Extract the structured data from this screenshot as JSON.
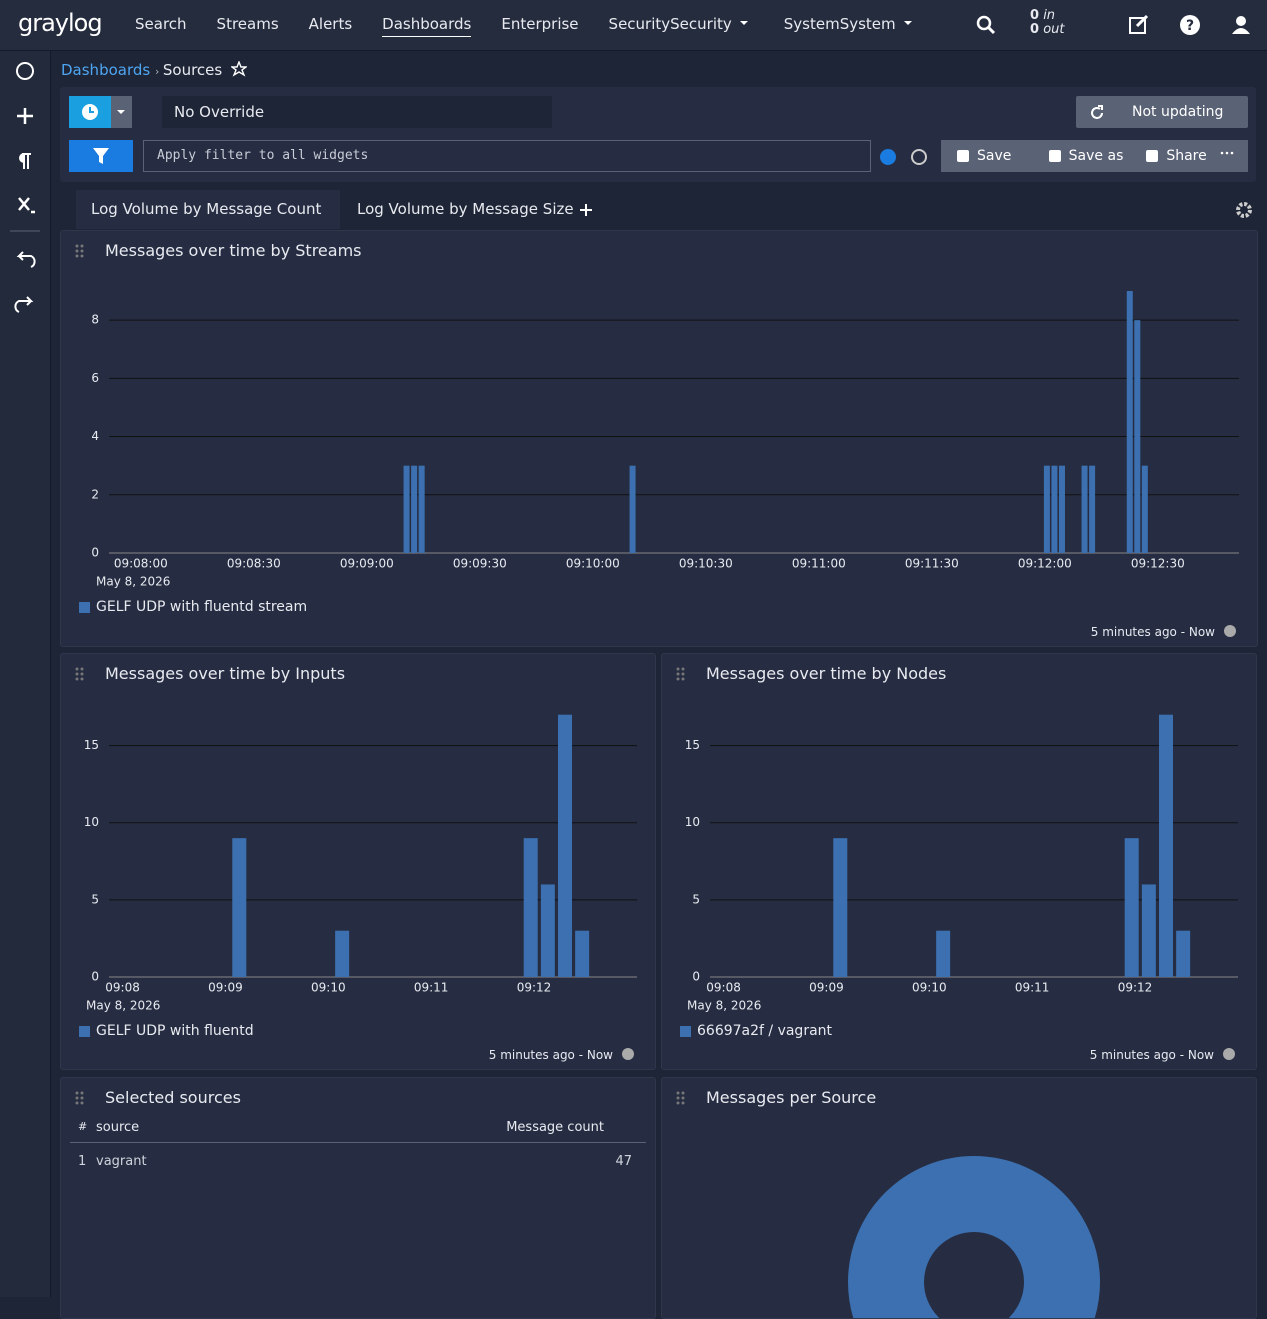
{
  "nav": {
    "logo": "graylog",
    "items": [
      "Search",
      "Streams",
      "Alerts",
      "Dashboards",
      "Enterprise",
      "Security",
      "System"
    ],
    "throughput": {
      "in_count": "0",
      "in_label": "in",
      "out_count": "0",
      "out_label": "out"
    }
  },
  "breadcrumb": [
    "Dashboards",
    "Sources"
  ],
  "search_bar": {
    "time_range": "No Override",
    "refresh": "Not updating",
    "filter_placeholder": "Apply filter to all widgets",
    "actions": [
      "Save",
      "Save as",
      "Share"
    ]
  },
  "tabs": [
    "Log Volume by Message Count",
    "Log Volume by Message Size"
  ],
  "widgets": [
    {
      "title": "Messages over time by Streams",
      "timerange": "5 minutes ago - Now",
      "chart_data": {
        "type": "bar",
        "x": [
          "09:09:14",
          "09:09:16",
          "09:09:18",
          "09:10:14",
          "09:12:04",
          "09:12:06",
          "09:12:08",
          "09:12:14",
          "09:12:16",
          "09:12:26",
          "09:12:28",
          "09:12:30"
        ],
        "series": [
          {
            "name": "GELF UDP with fluentd stream",
            "color": "#3c70b0",
            "values": [
              3,
              3,
              3,
              3,
              3,
              3,
              3,
              3,
              3,
              9,
              8,
              3
            ]
          }
        ],
        "xlim": [
          "09:07:55",
          "09:12:55"
        ],
        "xticks": [
          "09:08:00",
          "09:08:30",
          "09:09:00",
          "09:09:30",
          "09:10:00",
          "09:10:30",
          "09:11:00",
          "09:11:30",
          "09:12:00",
          "09:12:30"
        ],
        "x_date_label": "May 8, 2026",
        "ylim": [
          0,
          9
        ],
        "yticks": [
          0,
          2,
          4,
          6,
          8
        ],
        "grid": true
      }
    },
    {
      "title": "Messages over time by Inputs",
      "timerange": "5 minutes ago - Now",
      "chart_data": {
        "type": "bar",
        "x": [
          "09:09:10",
          "09:10:10",
          "09:12:00",
          "09:12:10",
          "09:12:20",
          "09:12:30"
        ],
        "series": [
          {
            "name": "GELF UDP with fluentd",
            "color": "#3c70b0",
            "values": [
              9,
              3,
              9,
              6,
              17,
              3
            ]
          }
        ],
        "xlim": [
          "09:07:54",
          "09:13:02"
        ],
        "xticks": [
          "09:08",
          "09:09",
          "09:10",
          "09:11",
          "09:12"
        ],
        "x_date_label": "May 8, 2026",
        "ylim": [
          0,
          17.5
        ],
        "yticks": [
          0,
          5,
          10,
          15
        ],
        "grid": true
      }
    },
    {
      "title": "Messages over time by Nodes",
      "timerange": "5 minutes ago - Now",
      "chart_data": {
        "type": "bar",
        "x": [
          "09:09:10",
          "09:10:10",
          "09:12:00",
          "09:12:10",
          "09:12:20",
          "09:12:30"
        ],
        "series": [
          {
            "name": "66697a2f / vagrant",
            "color": "#3c70b0",
            "values": [
              9,
              3,
              9,
              6,
              17,
              3
            ]
          }
        ],
        "xlim": [
          "09:07:54",
          "09:13:02"
        ],
        "xticks": [
          "09:08",
          "09:09",
          "09:10",
          "09:11",
          "09:12"
        ],
        "x_date_label": "May 8, 2026",
        "ylim": [
          0,
          17.5
        ],
        "yticks": [
          0,
          5,
          10,
          15
        ],
        "grid": true
      }
    },
    {
      "title": "Selected sources",
      "table": {
        "columns": [
          "#",
          "source",
          "Message count"
        ],
        "rows": [
          [
            "1",
            "vagrant",
            "47"
          ]
        ]
      }
    },
    {
      "title": "Messages per Source",
      "chart_data": {
        "type": "pie",
        "values": [
          47
        ],
        "colors": [
          "#3c70b0"
        ]
      }
    }
  ]
}
